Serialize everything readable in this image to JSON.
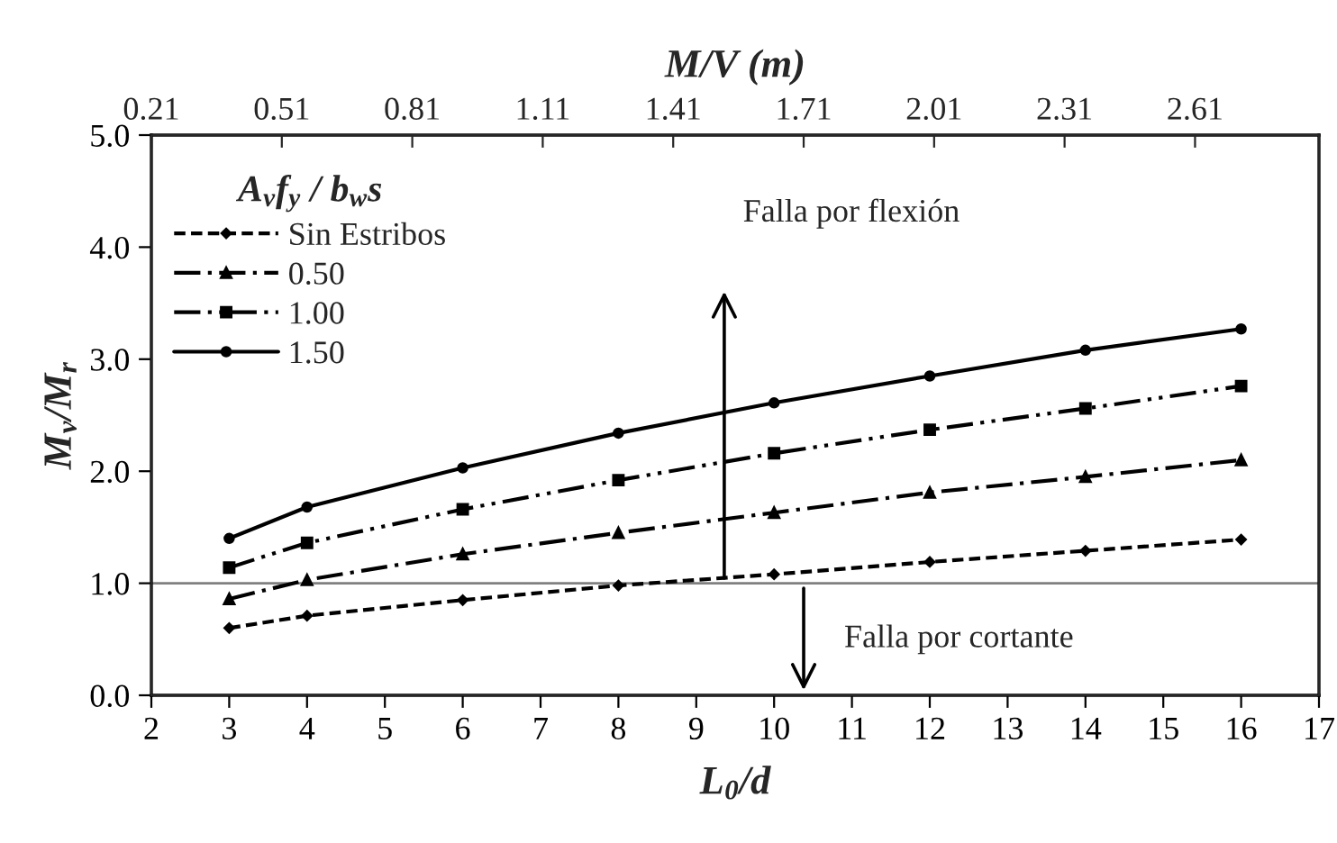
{
  "chart_data": {
    "type": "line",
    "xlabel": "L$_{0}$/d",
    "ylabel": "M$_{v}$/M$_{r}$",
    "x2label": "M/V (m)",
    "legend_title": "A$_{v}$f$_{y}$ / b$_{w}$s",
    "x": [
      3,
      4,
      6,
      8,
      10,
      12,
      14,
      16
    ],
    "series": [
      {
        "name": "Sin Estribos",
        "color": "#000000",
        "line_style": "dashed",
        "marker": "diamond",
        "values": [
          0.6,
          0.71,
          0.85,
          0.98,
          1.08,
          1.19,
          1.29,
          1.39
        ]
      },
      {
        "name": "0.50",
        "color": "#000000",
        "line_style": "dashdot",
        "marker": "triangle",
        "values": [
          0.86,
          1.03,
          1.26,
          1.45,
          1.63,
          1.81,
          1.95,
          2.1
        ]
      },
      {
        "name": "1.00",
        "color": "#000000",
        "line_style": "dashdotdot",
        "marker": "square",
        "values": [
          1.14,
          1.36,
          1.66,
          1.92,
          2.16,
          2.37,
          2.56,
          2.76
        ]
      },
      {
        "name": "1.50",
        "color": "#000000",
        "line_style": "solid",
        "marker": "circle",
        "values": [
          1.4,
          1.68,
          2.03,
          2.34,
          2.61,
          2.85,
          3.08,
          3.27
        ]
      }
    ],
    "xlim": [
      2,
      17
    ],
    "xticks": [
      2,
      3,
      4,
      5,
      6,
      7,
      8,
      9,
      10,
      11,
      12,
      13,
      14,
      15,
      16,
      17
    ],
    "ylim": [
      0,
      5
    ],
    "yticks": [
      {
        "value": 0,
        "label": "0.0"
      },
      {
        "value": 1,
        "label": "1.0"
      },
      {
        "value": 2,
        "label": "2.0"
      },
      {
        "value": 3,
        "label": "3.0"
      },
      {
        "value": 4,
        "label": "4.0"
      },
      {
        "value": 5,
        "label": "5.0"
      }
    ],
    "x2lim": [
      0.21,
      2.895
    ],
    "x2ticks": [
      0.21,
      0.51,
      0.81,
      1.11,
      1.41,
      1.71,
      2.01,
      2.31,
      2.61
    ],
    "ref_lines": [
      {
        "axis": "y",
        "value": 1,
        "color": "#808080"
      }
    ],
    "annotations": [
      "Falla por flexión",
      "Falla por cortante"
    ],
    "legend": "top left",
    "grid": false
  }
}
